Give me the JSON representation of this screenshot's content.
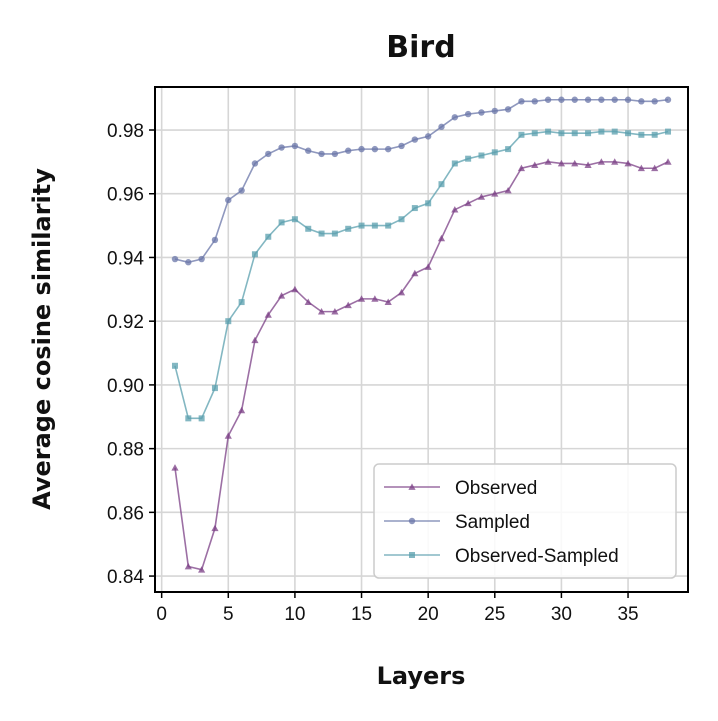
{
  "chart_data": {
    "type": "line",
    "title": "Bird",
    "xlabel": "Layers",
    "ylabel": "Average cosine similarity",
    "xlim": [
      -0.5,
      39.5
    ],
    "ylim": [
      0.835,
      0.9935
    ],
    "xticks": [
      0,
      5,
      10,
      15,
      20,
      25,
      30,
      35
    ],
    "xtick_labels": [
      "0",
      "5",
      "10",
      "15",
      "20",
      "25",
      "30",
      "35"
    ],
    "yticks": [
      0.84,
      0.86,
      0.88,
      0.9,
      0.92,
      0.94,
      0.96,
      0.98
    ],
    "ytick_labels": [
      "0.84",
      "0.86",
      "0.88",
      "0.90",
      "0.92",
      "0.94",
      "0.96",
      "0.98"
    ],
    "grid": true,
    "legend_position": "lower-right",
    "x": [
      1,
      2,
      3,
      4,
      5,
      6,
      7,
      8,
      9,
      10,
      11,
      12,
      13,
      14,
      15,
      16,
      17,
      18,
      19,
      20,
      21,
      22,
      23,
      24,
      25,
      26,
      27,
      28,
      29,
      30,
      31,
      32,
      33,
      34,
      35,
      36,
      37,
      38
    ],
    "series": [
      {
        "name": "Observed",
        "color": "#7b3f86",
        "marker": "triangle",
        "values": [
          0.874,
          0.843,
          0.842,
          0.855,
          0.884,
          0.892,
          0.914,
          0.922,
          0.928,
          0.93,
          0.926,
          0.923,
          0.923,
          0.925,
          0.927,
          0.927,
          0.926,
          0.929,
          0.935,
          0.937,
          0.946,
          0.955,
          0.957,
          0.959,
          0.96,
          0.961,
          0.968,
          0.969,
          0.97,
          0.9695,
          0.9695,
          0.969,
          0.97,
          0.97,
          0.9695,
          0.968,
          0.968,
          0.97
        ]
      },
      {
        "name": "Sampled",
        "color": "#6a76a8",
        "marker": "circle",
        "values": [
          0.9395,
          0.9385,
          0.9395,
          0.9455,
          0.958,
          0.961,
          0.9695,
          0.9725,
          0.9745,
          0.975,
          0.9735,
          0.9725,
          0.9725,
          0.9735,
          0.974,
          0.974,
          0.974,
          0.975,
          0.977,
          0.978,
          0.981,
          0.984,
          0.985,
          0.9855,
          0.986,
          0.9865,
          0.989,
          0.989,
          0.9895,
          0.9895,
          0.9895,
          0.9895,
          0.9895,
          0.9895,
          0.9895,
          0.989,
          0.989,
          0.9895
        ]
      },
      {
        "name": "Observed-Sampled",
        "color": "#5a9fae",
        "marker": "square",
        "values": [
          0.906,
          0.8895,
          0.8895,
          0.899,
          0.92,
          0.926,
          0.941,
          0.9465,
          0.951,
          0.952,
          0.949,
          0.9475,
          0.9475,
          0.949,
          0.95,
          0.95,
          0.95,
          0.952,
          0.9555,
          0.957,
          0.963,
          0.9695,
          0.971,
          0.972,
          0.973,
          0.974,
          0.9785,
          0.979,
          0.9795,
          0.979,
          0.979,
          0.979,
          0.9795,
          0.9795,
          0.979,
          0.9785,
          0.9785,
          0.9795
        ]
      }
    ]
  }
}
